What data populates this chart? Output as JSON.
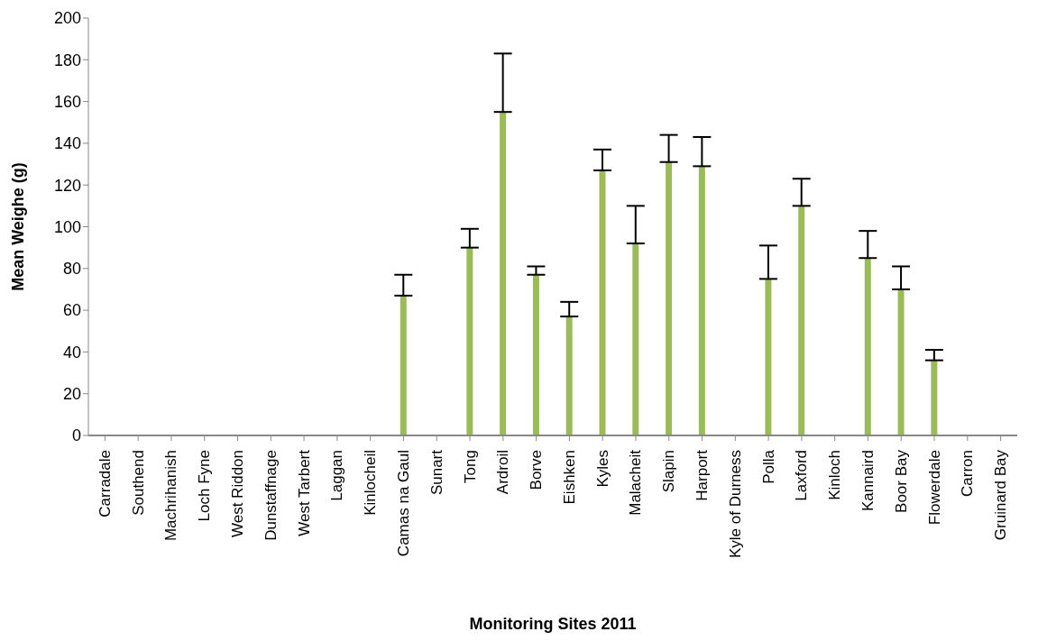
{
  "chart_data": {
    "type": "bar",
    "xlabel": "Monitoring Sites 2011",
    "ylabel": "Mean Weighe (g)",
    "categories": [
      "Carradale",
      "Southend",
      "Machrihanish",
      "Loch Fyne",
      "West Riddon",
      "Dunstaffnage",
      "West Tarbert",
      "Laggan",
      "Kinlocheil",
      "Camas na Gaul",
      "Sunart",
      "Tong",
      "Ardroil",
      "Borve",
      "Eishken",
      "Kyles",
      "Malacheit",
      "Slapin",
      "Harport",
      "Kyle of Durness",
      "Polla",
      "Laxford",
      "Kinloch",
      "Kannaird",
      "Boor Bay",
      "Flowerdale",
      "Carron",
      "Gruinard Bay"
    ],
    "values": [
      null,
      null,
      null,
      null,
      null,
      null,
      null,
      null,
      null,
      67,
      null,
      90,
      155,
      77,
      57,
      127,
      92,
      131,
      129,
      null,
      75,
      110,
      null,
      85,
      70,
      36,
      null,
      null
    ],
    "errors": [
      null,
      null,
      null,
      null,
      null,
      null,
      null,
      null,
      null,
      [
        67,
        77
      ],
      null,
      [
        90,
        99
      ],
      [
        155,
        183
      ],
      [
        77,
        81
      ],
      [
        57,
        64
      ],
      [
        127,
        137
      ],
      [
        92,
        110
      ],
      [
        131,
        144
      ],
      [
        129,
        143
      ],
      null,
      [
        75,
        91
      ],
      [
        110,
        123
      ],
      null,
      [
        85,
        98
      ],
      [
        70,
        81
      ],
      [
        36,
        41
      ],
      null,
      null
    ],
    "color": "#9bbb59",
    "ylim": [
      0,
      200
    ],
    "yticks": [
      0,
      20,
      40,
      60,
      80,
      100,
      120,
      140,
      160,
      180,
      200
    ],
    "grid": false,
    "legend": false
  }
}
